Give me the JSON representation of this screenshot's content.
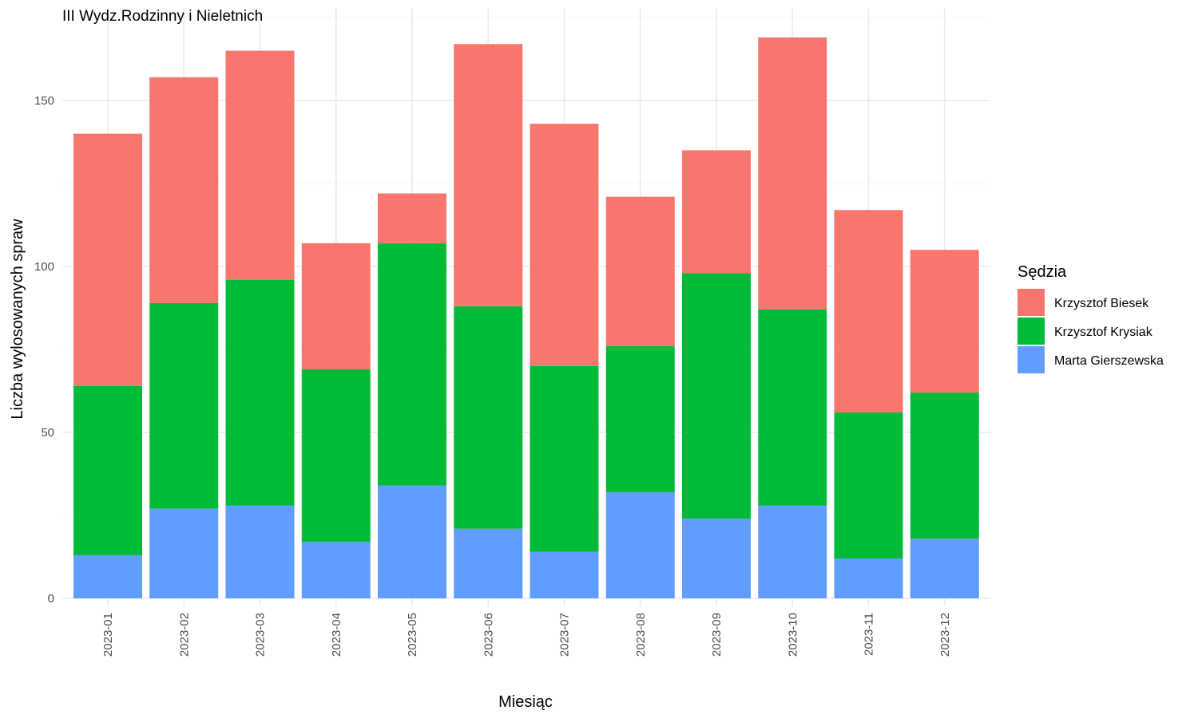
{
  "chart_data": {
    "type": "bar",
    "stacked": true,
    "title": "III Wydz.Rodzinny i Nieletnich",
    "xlabel": "Miesiąc",
    "ylabel": "Liczba wylosowanych spraw",
    "categories": [
      "2023-01",
      "2023-02",
      "2023-03",
      "2023-04",
      "2023-05",
      "2023-06",
      "2023-07",
      "2023-08",
      "2023-09",
      "2023-10",
      "2023-11",
      "2023-12"
    ],
    "series": [
      {
        "name": "Krzysztof Biesek",
        "color": "#F8766D",
        "values": [
          76,
          68,
          69,
          38,
          15,
          79,
          73,
          45,
          37,
          82,
          61,
          43
        ]
      },
      {
        "name": "Krzysztof Krysiak",
        "color": "#00BA38",
        "values": [
          51,
          62,
          68,
          52,
          73,
          67,
          56,
          44,
          74,
          59,
          44,
          44
        ]
      },
      {
        "name": "Marta Gierszewska",
        "color": "#619CFF",
        "values": [
          13,
          27,
          28,
          17,
          34,
          21,
          14,
          32,
          24,
          28,
          12,
          18
        ]
      }
    ],
    "stack_order_bottom_to_top": [
      "Marta Gierszewska",
      "Krzysztof Krysiak",
      "Krzysztof Biesek"
    ],
    "yticks": [
      0,
      50,
      100,
      150
    ],
    "ylim": [
      0,
      177
    ],
    "grid": true,
    "legend": {
      "title": "Sędzia",
      "position": "right",
      "entries": [
        "Krzysztof Biesek",
        "Krzysztof Krysiak",
        "Marta Gierszewska"
      ]
    }
  }
}
